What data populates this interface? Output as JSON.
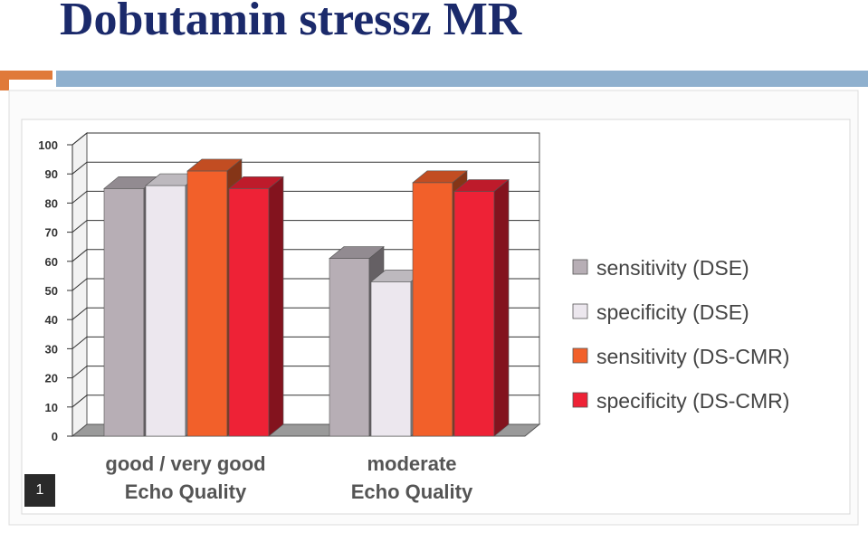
{
  "slide": {
    "title": "Dobutamin stressz MR",
    "page_number": "1"
  },
  "colors": {
    "title": "#1b2a6b",
    "accent_orange": "#e07a3a",
    "accent_blue": "#8fb0ce"
  },
  "chart_data": {
    "type": "bar",
    "categories": [
      "good / very good\nEcho Quality",
      "moderate\nEcho Quality"
    ],
    "series": [
      {
        "name": "sensitivity (DSE)",
        "values": [
          85,
          61
        ],
        "color": "#b7aeb5"
      },
      {
        "name": "specificity (DSE)",
        "values": [
          86,
          53
        ],
        "color": "#ece7ee"
      },
      {
        "name": "sensitivity (DS-CMR)",
        "values": [
          91,
          87
        ],
        "color": "#f2602a"
      },
      {
        "name": "specificity (DS-CMR)",
        "values": [
          85,
          84
        ],
        "color": "#ee2236"
      }
    ],
    "ylim": [
      0,
      100
    ],
    "yticks": [
      0,
      10,
      20,
      30,
      40,
      50,
      60,
      70,
      80,
      90,
      100
    ],
    "grid": true,
    "legend_position": "right",
    "three_d": true
  }
}
